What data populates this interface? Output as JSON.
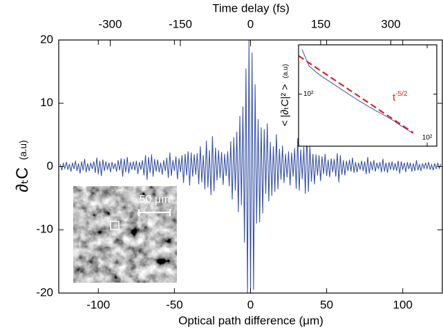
{
  "chart_data": [
    {
      "type": "line",
      "xlabel": "Optical path difference (μm)",
      "x2label": "Time delay (fs)",
      "ylabel": "∂ₜC",
      "ylabel_unit": "(a.u)",
      "image_scale_label": "50 μm",
      "xlim": [
        -126,
        126
      ],
      "xticks": [
        -100,
        -50,
        0,
        50,
        100
      ],
      "x2lim": [
        -410,
        410
      ],
      "x2ticks": [
        -300,
        -150,
        0,
        150,
        300
      ],
      "ylim": [
        -20,
        20
      ],
      "yticks": [
        -20,
        -10,
        0,
        10,
        20
      ],
      "x": [
        -125,
        -124,
        -123,
        -122,
        -121,
        -120,
        -119,
        -118,
        -117,
        -116,
        -115,
        -114,
        -113,
        -112,
        -111,
        -110,
        -109,
        -108,
        -107,
        -106,
        -105,
        -104,
        -103,
        -102,
        -101,
        -100,
        -99,
        -98,
        -97,
        -96,
        -95,
        -94,
        -93,
        -92,
        -91,
        -90,
        -89,
        -88,
        -87,
        -86,
        -85,
        -84,
        -83,
        -82,
        -81,
        -80,
        -79,
        -78,
        -77,
        -76,
        -75,
        -74,
        -73,
        -72,
        -71,
        -70,
        -69,
        -68,
        -67,
        -66,
        -65,
        -64,
        -63,
        -62,
        -61,
        -60,
        -59,
        -58,
        -57,
        -56,
        -55,
        -54,
        -53,
        -52,
        -51,
        -50,
        -49,
        -48,
        -47,
        -46,
        -45,
        -44,
        -43,
        -42,
        -41,
        -40,
        -39,
        -38,
        -37,
        -36,
        -35,
        -34,
        -33,
        -32,
        -31,
        -30,
        -29,
        -28,
        -27,
        -26,
        -25,
        -24,
        -23,
        -22,
        -21,
        -20,
        -19,
        -18,
        -17,
        -16,
        -15,
        -14,
        -13,
        -12,
        -11,
        -10,
        -9,
        -8,
        -7,
        -6,
        -5,
        -4,
        -3,
        -2,
        -1,
        0,
        1,
        2,
        3,
        4,
        5,
        6,
        7,
        8,
        9,
        10,
        11,
        12,
        13,
        14,
        15,
        16,
        17,
        18,
        19,
        20,
        21,
        22,
        23,
        24,
        25,
        26,
        27,
        28,
        29,
        30,
        31,
        32,
        33,
        34,
        35,
        36,
        37,
        38,
        39,
        40,
        41,
        42,
        43,
        44,
        45,
        46,
        47,
        48,
        49,
        50,
        51,
        52,
        53,
        54,
        55,
        56,
        57,
        58,
        59,
        60,
        61,
        62,
        63,
        64,
        65,
        66,
        67,
        68,
        69,
        70,
        71,
        72,
        73,
        74,
        75,
        76,
        77,
        78,
        79,
        80,
        81,
        82,
        83,
        84,
        85,
        86,
        87,
        88,
        89,
        90,
        91,
        92,
        93,
        94,
        95,
        96,
        97,
        98,
        99,
        100,
        101,
        102,
        103,
        104,
        105,
        106,
        107,
        108,
        109,
        110,
        111,
        112,
        113,
        114,
        115,
        116,
        117,
        118,
        119,
        120,
        121,
        122,
        123,
        124,
        125
      ],
      "series": [
        {
          "color": "#3a54a4",
          "values": [
            0.4,
            -0.6,
            0.5,
            -0.3,
            0.7,
            -0.5,
            0.4,
            -0.8,
            0.6,
            -0.4,
            0.9,
            -0.7,
            0.5,
            -1.1,
            0.8,
            -0.6,
            1.2,
            -0.9,
            0.5,
            -0.7,
            0.6,
            -0.4,
            0.8,
            -1.0,
            1.4,
            -1.2,
            0.9,
            -1.5,
            1.1,
            -0.7,
            0.8,
            -0.5,
            0.6,
            -0.9,
            0.7,
            -0.4,
            0.5,
            -0.8,
            1.0,
            -0.6,
            1.3,
            -1.6,
            1.2,
            -0.9,
            1.5,
            -1.1,
            0.7,
            -0.5,
            0.8,
            -0.6,
            0.9,
            -1.2,
            0.7,
            -0.5,
            1.0,
            -1.4,
            1.8,
            -2.1,
            1.5,
            -1.0,
            1.9,
            -1.6,
            1.2,
            -0.8,
            1.1,
            -0.9,
            0.6,
            -1.3,
            1.0,
            -0.7,
            1.4,
            -1.8,
            2.2,
            -1.5,
            1.0,
            -0.7,
            1.6,
            -2.0,
            1.3,
            -0.9,
            1.8,
            -2.6,
            2.0,
            -1.4,
            2.4,
            -3.0,
            2.2,
            -1.6,
            1.9,
            -1.3,
            2.1,
            -2.8,
            3.2,
            -2.5,
            1.8,
            -3.6,
            4.1,
            -3.3,
            2.6,
            -4.5,
            4.8,
            -3.9,
            3.0,
            -2.2,
            2.6,
            -1.8,
            2.3,
            -2.9,
            2.0,
            -1.5,
            2.4,
            -3.1,
            4.0,
            -5.2,
            4.6,
            -3.8,
            5.5,
            -7.2,
            8.0,
            -6.1,
            9.5,
            -12.0,
            15.5,
            -20.0,
            20.0,
            -20.0,
            18.0,
            -19.5,
            13.0,
            -9.0,
            7.5,
            -8.8,
            6.2,
            -7.4,
            5.9,
            -4.3,
            6.8,
            -5.5,
            3.9,
            -4.6,
            3.2,
            -4.0,
            5.1,
            -3.6,
            2.8,
            -2.1,
            3.3,
            -2.6,
            2.0,
            -1.7,
            2.4,
            -3.0,
            2.2,
            -1.6,
            2.9,
            -3.5,
            4.5,
            -3.8,
            2.7,
            -2.0,
            3.1,
            -4.3,
            5.5,
            -4.0,
            3.2,
            -2.4,
            2.0,
            -2.8,
            1.9,
            -1.4,
            1.8,
            -2.3,
            1.6,
            -1.2,
            2.0,
            -1.5,
            1.1,
            -1.7,
            1.3,
            -0.9,
            1.2,
            -1.6,
            2.1,
            -2.5,
            1.8,
            -1.3,
            1.0,
            -1.4,
            0.9,
            -0.7,
            1.1,
            -0.8,
            1.4,
            -1.0,
            0.7,
            -0.9,
            0.6,
            -0.5,
            0.9,
            -0.7,
            0.8,
            -1.2,
            1.5,
            -1.1,
            0.8,
            -0.6,
            1.0,
            -0.8,
            0.6,
            -0.4,
            0.7,
            -0.9,
            1.2,
            -0.8,
            0.6,
            -1.0,
            0.7,
            -0.5,
            0.8,
            -0.6,
            0.5,
            -0.7,
            0.9,
            -1.1,
            0.8,
            -0.5,
            0.6,
            -0.9,
            0.7,
            -0.4,
            0.6,
            -0.8,
            0.5,
            -0.7,
            1.0,
            -0.6,
            0.4,
            -0.7,
            0.5,
            -0.3,
            0.6,
            -0.4,
            0.7,
            -0.5,
            0.3,
            -0.6,
            0.5,
            -0.4,
            0.6,
            -0.3,
            0.4
          ]
        }
      ]
    },
    {
      "type": "line",
      "xlog": true,
      "ylog": true,
      "ylabel": "< |∂ₜC|² >",
      "ylabel_unit": "(a.u)",
      "annotation": {
        "text": "t",
        "sup": "-5/2"
      },
      "xlim": [
        3,
        130
      ],
      "xticks": [
        {
          "value": 100,
          "label": "10²"
        }
      ],
      "ylim": [
        0.5,
        15000
      ],
      "yticks": [
        {
          "value": 100,
          "label": "10²"
        }
      ],
      "series": [
        {
          "color": "#3a54a4",
          "x": [
            3.3,
            4,
            5,
            6,
            8,
            10,
            13,
            16,
            20,
            25,
            32,
            40,
            50,
            63,
            68
          ],
          "values": [
            9250,
            1720,
            850,
            521,
            258,
            147,
            78,
            48,
            29,
            18,
            11,
            6.7,
            3.8,
            2.2,
            1.8
          ]
        },
        {
          "color": "#e02020",
          "dashed": true,
          "x": [
            3,
            68
          ],
          "values": [
            4890,
            2
          ]
        }
      ]
    }
  ]
}
